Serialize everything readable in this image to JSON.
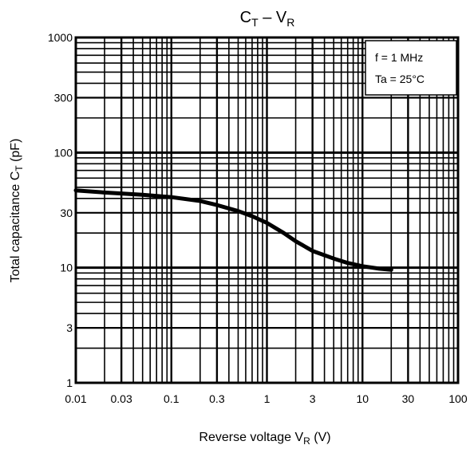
{
  "chart_data": {
    "type": "line",
    "title": {
      "main": "C",
      "sub": "T",
      "dash": " – V",
      "sub2": "R"
    },
    "xlabel": {
      "main": "Reverse voltage   V",
      "sub": "R",
      "unit": "   (V)"
    },
    "ylabel": {
      "main": "Total capacitance   C",
      "sub": "T",
      "unit": "   (pF)"
    },
    "x_scale": "log",
    "y_scale": "log",
    "xlim": [
      0.01,
      100
    ],
    "ylim": [
      1,
      1000
    ],
    "x_ticks": [
      {
        "value": 0.01,
        "label": "0.01"
      },
      {
        "value": 0.03,
        "label": "0.03"
      },
      {
        "value": 0.1,
        "label": "0.1"
      },
      {
        "value": 0.3,
        "label": "0.3"
      },
      {
        "value": 1,
        "label": "1"
      },
      {
        "value": 3,
        "label": "3"
      },
      {
        "value": 10,
        "label": "10"
      },
      {
        "value": 30,
        "label": "30"
      },
      {
        "value": 100,
        "label": "100"
      }
    ],
    "y_ticks": [
      {
        "value": 1,
        "label": "1"
      },
      {
        "value": 3,
        "label": "3"
      },
      {
        "value": 10,
        "label": "10"
      },
      {
        "value": 30,
        "label": "30"
      },
      {
        "value": 100,
        "label": "100"
      },
      {
        "value": 300,
        "label": "300"
      },
      {
        "value": 1000,
        "label": "1000"
      }
    ],
    "grid": true,
    "legend_position": "top-right",
    "conditions": [
      "f = 1 MHz",
      "Ta = 25°C"
    ],
    "series": [
      {
        "x": [
          0.01,
          0.02,
          0.05,
          0.1,
          0.2,
          0.3,
          0.5,
          0.7,
          1,
          1.5,
          2,
          3,
          5,
          7,
          10,
          15,
          20
        ],
        "y": [
          47,
          45,
          43,
          41,
          38,
          35,
          31,
          28,
          24.5,
          20,
          17,
          14,
          12,
          11,
          10.3,
          9.8,
          9.6
        ]
      }
    ],
    "colors": {
      "line": "#000000",
      "grid": "#000000",
      "background": "#ffffff"
    }
  }
}
